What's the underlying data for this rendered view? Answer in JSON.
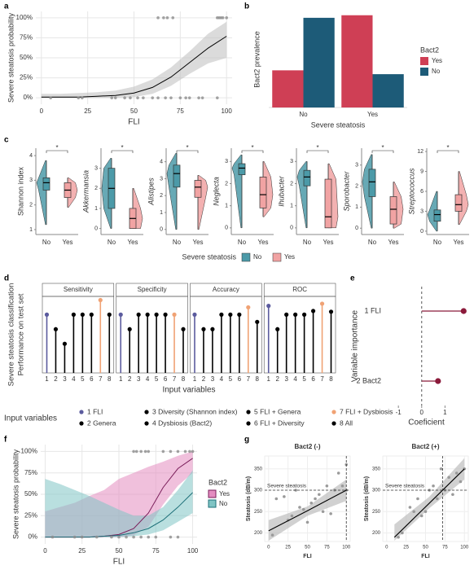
{
  "chart_data": [
    {
      "panel": "a",
      "type": "line_band",
      "ylabel": "Severe steatosis probability",
      "xlabel": "FLI",
      "xlim": [
        -3,
        103
      ],
      "xticks": [
        0,
        25,
        50,
        75,
        100
      ],
      "ylim": [
        -8,
        108
      ],
      "yticks": [
        {
          "value": 0,
          "label": "0%"
        },
        {
          "value": 25,
          "label": "25%"
        },
        {
          "value": 50,
          "label": "50%"
        },
        {
          "value": 75,
          "label": "75%"
        },
        {
          "value": 100,
          "label": "100%"
        }
      ],
      "x": [
        0,
        10,
        20,
        30,
        40,
        50,
        60,
        70,
        80,
        90,
        100
      ],
      "series": [
        {
          "color": "#000000",
          "band_color": "#bdbdbd",
          "values": [
            1,
            1,
            1,
            2,
            3,
            6,
            13,
            26,
            44,
            62,
            77
          ],
          "lower": [
            0,
            0,
            0,
            0,
            0,
            1,
            5,
            15,
            30,
            43,
            50
          ],
          "upper": [
            5,
            5,
            6,
            7,
            9,
            14,
            23,
            38,
            58,
            80,
            95
          ]
        }
      ],
      "points": {
        "color": "#8c8c8c",
        "x": [
          63,
          66,
          68,
          71,
          95,
          96,
          97,
          98,
          100,
          5,
          20,
          22,
          38,
          40,
          45,
          48,
          52,
          55,
          60,
          63,
          67,
          70,
          75,
          78,
          80,
          85,
          87,
          95
        ],
        "values": [
          100,
          100,
          100,
          100,
          100,
          100,
          100,
          100,
          100,
          0,
          0,
          0,
          0,
          0,
          0,
          0,
          0,
          0,
          0,
          0,
          0,
          0,
          0,
          0,
          0,
          0,
          0,
          0
        ]
      }
    },
    {
      "panel": "b",
      "type": "bar",
      "ylabel": "Bact2 prevalence",
      "xlabel": "Severe steatosis",
      "legend_title": "Bact2",
      "categories": [
        "No",
        "Yes"
      ],
      "ylim": [
        0,
        0.75
      ],
      "series": [
        {
          "name": "Yes",
          "color": "#cf3f55",
          "values": [
            0.29,
            0.72
          ]
        },
        {
          "name": "No",
          "color": "#1d5b78",
          "values": [
            0.7,
            0.26
          ]
        }
      ]
    },
    {
      "panel": "c",
      "type": "violin",
      "legend_title": "Severe steatosis",
      "categories": [
        "No",
        "Yes"
      ],
      "series": [
        {
          "name": "No",
          "color": "#4c9aa8"
        },
        {
          "name": "Yes",
          "color": "#f1a3a3"
        }
      ],
      "subplots": [
        {
          "ylabel": "Shannon index",
          "italic": false,
          "ylim": [
            0.8,
            4.3
          ],
          "yticks": [
            1,
            2,
            3,
            4
          ],
          "significance": "*",
          "boxes": [
            [
              1.2,
              2.6,
              2.9,
              3.1,
              3.8
            ],
            [
              1.9,
              2.3,
              2.6,
              2.9,
              3.1
            ]
          ]
        },
        {
          "ylabel": "Akkermansia",
          "italic": true,
          "ylim": [
            -0.3,
            4
          ],
          "yticks": [
            0,
            1,
            2,
            3
          ],
          "significance": "*",
          "boxes": [
            [
              0,
              1,
              2,
              3,
              3.5
            ],
            [
              0,
              0,
              0.5,
              1,
              2
            ]
          ]
        },
        {
          "ylabel": "Alistipes",
          "italic": true,
          "ylim": [
            -0.3,
            4.8
          ],
          "yticks": [
            0,
            1,
            2,
            3,
            4
          ],
          "significance": "*",
          "boxes": [
            [
              0,
              2.5,
              3.3,
              3.8,
              4.5
            ],
            [
              0,
              1.9,
              2.5,
              2.9,
              3.2
            ]
          ]
        },
        {
          "ylabel": "Neglecta",
          "italic": true,
          "ylim": [
            -0.3,
            3.6
          ],
          "yticks": [
            0,
            1,
            2,
            3
          ],
          "significance": "*",
          "boxes": [
            [
              0,
              2.4,
              2.7,
              2.9,
              3.3
            ],
            [
              0.5,
              0.9,
              1.5,
              2.3,
              3
            ]
          ]
        },
        {
          "ylabel": "Ihubacter",
          "italic": true,
          "ylim": [
            -0.3,
            3.6
          ],
          "yticks": [
            0,
            1,
            2,
            3
          ],
          "significance": "*",
          "boxes": [
            [
              0,
              1.9,
              2.3,
              2.6,
              3
            ],
            [
              0,
              0,
              0.5,
              2.2,
              2.9
            ]
          ]
        },
        {
          "ylabel": "Sporobacter",
          "italic": true,
          "ylim": [
            -0.3,
            3.8
          ],
          "yticks": [
            0,
            1,
            2,
            3
          ],
          "significance": "*",
          "boxes": [
            [
              0,
              1.5,
              2.2,
              2.8,
              3.5
            ],
            [
              0,
              0.2,
              0.9,
              1.5,
              2.2
            ]
          ]
        },
        {
          "ylabel": "Streptococcus",
          "italic": true,
          "ylim": [
            -0.5,
            12.5
          ],
          "yticks": [
            0,
            3,
            6,
            9,
            12
          ],
          "significance": "*",
          "boxes": [
            [
              0,
              1.5,
              2.5,
              3.2,
              6
            ],
            [
              1,
              3,
              4,
              5.5,
              9
            ]
          ]
        }
      ]
    },
    {
      "panel": "d",
      "type": "lollipop",
      "ylabel": [
        "Severe steatosis classification",
        "Performance on test set"
      ],
      "xlabel": "Input variables",
      "x": [
        1,
        2,
        3,
        4,
        5,
        6,
        7,
        8
      ],
      "xlim": [
        0.5,
        8.5
      ],
      "ylim": [
        0,
        1.05
      ],
      "facets": [
        {
          "title": "Sensitivity",
          "values": [
            0.8,
            0.6,
            0.4,
            0.8,
            0.8,
            0.8,
            1.0,
            0.8
          ]
        },
        {
          "title": "Specificity",
          "values": [
            0.8,
            0.6,
            0.8,
            0.8,
            0.8,
            0.8,
            0.8,
            0.6
          ]
        },
        {
          "title": "Accuracy",
          "values": [
            0.8,
            0.6,
            0.6,
            0.8,
            0.8,
            0.8,
            0.9,
            0.7
          ]
        },
        {
          "title": "ROC",
          "values": [
            0.92,
            0.6,
            0.8,
            0.8,
            0.8,
            0.85,
            0.95,
            0.84
          ]
        }
      ],
      "legend_title": "Input variables",
      "legend": [
        {
          "name": "1 FLI",
          "color": "#5b5b9e"
        },
        {
          "name": "2 Genera",
          "color": "#000000"
        },
        {
          "name": "3 Diversity (Shannon index)",
          "color": "#000000"
        },
        {
          "name": "4 Dysbiosis (Bact2)",
          "color": "#000000"
        },
        {
          "name": "5 FLI + Genera",
          "color": "#000000"
        },
        {
          "name": "6 FLI + Diversity",
          "color": "#000000"
        },
        {
          "name": "7 FLI + Dysbiosis",
          "color": "#f0a274"
        },
        {
          "name": "8 All",
          "color": "#000000"
        }
      ]
    },
    {
      "panel": "e",
      "type": "dot",
      "ylabel": "Variable importance",
      "xlabel": "Coeficient",
      "categories": [
        "1 FLI",
        "2 Bact2"
      ],
      "values": [
        1.8,
        0.7
      ],
      "color": "#8b1a3a",
      "xlim": [
        -1.6,
        2
      ],
      "xticks": [
        -1,
        0,
        1
      ],
      "refline": 0
    },
    {
      "panel": "f",
      "type": "line_band",
      "ylabel": "Severe steatosis probability",
      "xlabel": "FLI",
      "legend_title": "Bact2",
      "xlim": [
        -3,
        103
      ],
      "xticks": [
        0,
        25,
        50,
        75,
        100
      ],
      "ylim": [
        -8,
        108
      ],
      "yticks": [
        {
          "value": 0,
          "label": "0%"
        },
        {
          "value": 25,
          "label": "25%"
        },
        {
          "value": 50,
          "label": "50%"
        },
        {
          "value": 75,
          "label": "75%"
        },
        {
          "value": 100,
          "label": "100%"
        }
      ],
      "x": [
        0,
        10,
        20,
        30,
        40,
        50,
        60,
        70,
        80,
        90,
        100
      ],
      "series": [
        {
          "name": "Yes",
          "color": "#7a1e5a",
          "band_color": "#e48cc0",
          "values": [
            0,
            0,
            0,
            0,
            1,
            3,
            10,
            28,
            58,
            80,
            92
          ],
          "lower": [
            0,
            0,
            0,
            0,
            0,
            0,
            2,
            12,
            38,
            60,
            75
          ],
          "upper": [
            30,
            35,
            40,
            48,
            55,
            68,
            75,
            82,
            88,
            95,
            100
          ]
        },
        {
          "name": "No",
          "color": "#1d6f78",
          "band_color": "#7fc4c4",
          "values": [
            0,
            0,
            0,
            0,
            1,
            2,
            5,
            10,
            20,
            35,
            52
          ],
          "lower": [
            0,
            0,
            0,
            0,
            0,
            0,
            1,
            3,
            8,
            18,
            28
          ],
          "upper": [
            68,
            62,
            55,
            48,
            40,
            32,
            25,
            25,
            35,
            55,
            78
          ]
        }
      ],
      "points": {
        "color": "#8c8c8c",
        "x": [
          60,
          62,
          65,
          68,
          70,
          80,
          85,
          90,
          95,
          98,
          100,
          5,
          20,
          25,
          35,
          45,
          50,
          55,
          60,
          65,
          70,
          75,
          85,
          90
        ],
        "values": [
          100,
          100,
          100,
          100,
          100,
          100,
          100,
          100,
          100,
          100,
          100,
          0,
          0,
          0,
          0,
          0,
          0,
          0,
          0,
          0,
          0,
          0,
          0,
          0
        ]
      }
    },
    {
      "panel": "g",
      "type": "scatter_fit",
      "ylabel": "Steatosis (dB/m)",
      "xlabel": "FLI",
      "xlim": [
        -5,
        105
      ],
      "xticks": [
        0,
        25,
        50,
        75,
        100
      ],
      "ylim": [
        180,
        380
      ],
      "yticks": [
        200,
        250,
        300,
        350
      ],
      "hline": 300,
      "hline_label": "Severe steatosis",
      "subplots": [
        {
          "title": "Bact2 (-)",
          "vline": 100,
          "x": [
            5,
            10,
            20,
            25,
            30,
            35,
            40,
            45,
            50,
            55,
            60,
            65,
            70,
            75,
            80,
            85,
            90,
            95,
            100,
            100
          ],
          "values": [
            195,
            280,
            285,
            230,
            240,
            300,
            260,
            255,
            225,
            270,
            280,
            290,
            250,
            310,
            245,
            300,
            340,
            310,
            360,
            300
          ],
          "fit_x": [
            0,
            50,
            100
          ],
          "fit_y": [
            205,
            252,
            300
          ],
          "fit_lower": [
            182,
            240,
            275
          ],
          "fit_upper": [
            230,
            262,
            325
          ]
        },
        {
          "title": "Bact2 (+)",
          "vline": 72,
          "x": [
            15,
            20,
            30,
            35,
            40,
            45,
            50,
            55,
            60,
            65,
            70,
            75,
            80,
            85,
            90,
            95,
            100
          ],
          "values": [
            190,
            200,
            260,
            250,
            280,
            240,
            250,
            300,
            310,
            280,
            350,
            300,
            330,
            290,
            340,
            320,
            350
          ],
          "fit_x": [
            10,
            55,
            100
          ],
          "fit_y": [
            190,
            270,
            350
          ],
          "fit_lower": [
            182,
            258,
            325
          ],
          "fit_upper": [
            220,
            285,
            375
          ]
        }
      ]
    }
  ]
}
